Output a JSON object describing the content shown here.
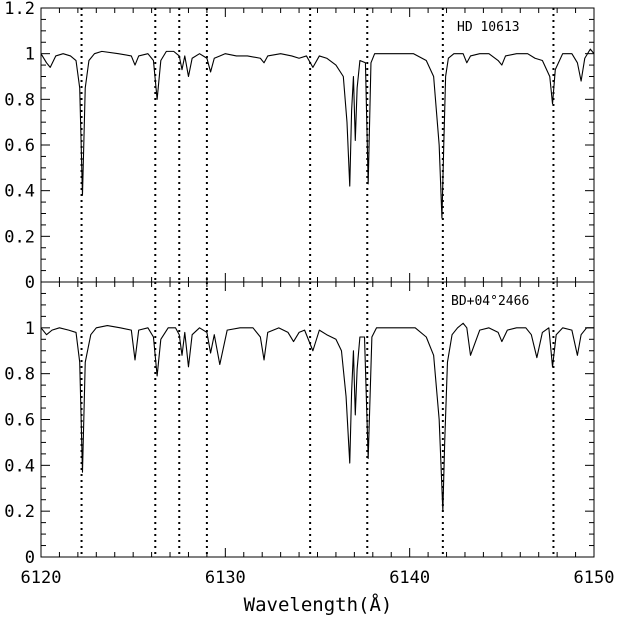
{
  "chart_data": [
    {
      "type": "line",
      "panel": "top",
      "label": "HD 10613",
      "x_range": [
        6120,
        6150
      ],
      "ylim": [
        0,
        1.2
      ],
      "y_ticks": [
        0,
        0.2,
        0.4,
        0.6,
        0.8,
        1,
        1.2
      ],
      "y_tick_labels": [
        "0",
        "0.2",
        "0.4",
        "0.6",
        "0.8",
        "1",
        "1.2"
      ],
      "series": [
        {
          "x": [
            6120.0,
            6120.3,
            6120.5,
            6120.8,
            6121.2,
            6121.6,
            6121.9,
            6122.1,
            6122.25,
            6122.4,
            6122.6,
            6122.9,
            6123.3,
            6124.2,
            6124.9,
            6125.1,
            6125.3,
            6125.8,
            6126.1,
            6126.3,
            6126.5,
            6126.8,
            6127.2,
            6127.5,
            6127.65,
            6127.8,
            6128.0,
            6128.2,
            6128.6,
            6129.0,
            6129.2,
            6129.4,
            6129.7,
            6130.0,
            6130.6,
            6131.2,
            6131.9,
            6132.1,
            6132.3,
            6133.0,
            6133.6,
            6134.0,
            6134.4,
            6134.75,
            6135.1,
            6135.5,
            6136.0,
            6136.4,
            6136.6,
            6136.75,
            6136.85,
            6136.95,
            6137.05,
            6137.15,
            6137.3,
            6137.6,
            6137.75,
            6137.9,
            6138.1,
            6138.5,
            6139.3,
            6140.2,
            6140.9,
            6141.3,
            6141.6,
            6141.75,
            6141.85,
            6141.95,
            6142.1,
            6142.4,
            6142.9,
            6143.1,
            6143.3,
            6143.8,
            6144.3,
            6144.8,
            6145.0,
            6145.2,
            6145.8,
            6146.4,
            6146.8,
            6147.2,
            6147.6,
            6147.75,
            6147.9,
            6148.3,
            6148.8,
            6149.1,
            6149.3,
            6149.5,
            6149.8,
            6150.0
          ],
          "y": [
            1.0,
            0.96,
            0.94,
            0.99,
            1.0,
            0.99,
            0.97,
            0.85,
            0.38,
            0.85,
            0.97,
            1.0,
            1.01,
            1.0,
            0.99,
            0.95,
            0.99,
            1.0,
            0.97,
            0.8,
            0.97,
            1.01,
            1.01,
            0.99,
            0.93,
            0.99,
            0.9,
            0.98,
            1.0,
            0.98,
            0.92,
            0.98,
            0.99,
            1.0,
            0.99,
            0.99,
            0.98,
            0.96,
            0.99,
            1.0,
            0.99,
            0.98,
            0.99,
            0.94,
            0.99,
            0.98,
            0.95,
            0.9,
            0.7,
            0.42,
            0.75,
            0.9,
            0.62,
            0.85,
            0.97,
            0.96,
            0.43,
            0.96,
            1.0,
            1.0,
            1.0,
            1.0,
            0.97,
            0.9,
            0.6,
            0.28,
            0.6,
            0.9,
            0.98,
            1.0,
            1.0,
            0.96,
            0.99,
            1.0,
            1.0,
            0.97,
            0.95,
            0.99,
            1.0,
            1.0,
            0.98,
            0.97,
            0.9,
            0.78,
            0.93,
            1.0,
            1.0,
            0.96,
            0.88,
            0.98,
            1.02,
            1.0
          ]
        }
      ]
    },
    {
      "type": "line",
      "panel": "bottom",
      "label": "BD+04°2466",
      "x_range": [
        6120,
        6150
      ],
      "ylim": [
        0,
        1.2
      ],
      "y_ticks": [
        0,
        0.2,
        0.4,
        0.6,
        0.8,
        1
      ],
      "y_tick_labels": [
        "0",
        "0.2",
        "0.4",
        "0.6",
        "0.8",
        "1"
      ],
      "series": [
        {
          "x": [
            6120.0,
            6120.3,
            6120.6,
            6121.0,
            6121.5,
            6121.9,
            6122.1,
            6122.25,
            6122.4,
            6122.7,
            6123.0,
            6123.6,
            6124.3,
            6124.9,
            6125.1,
            6125.3,
            6125.8,
            6126.1,
            6126.3,
            6126.5,
            6126.9,
            6127.3,
            6127.5,
            6127.65,
            6127.8,
            6128.0,
            6128.2,
            6128.6,
            6129.0,
            6129.2,
            6129.4,
            6129.7,
            6130.1,
            6130.8,
            6131.5,
            6131.9,
            6132.1,
            6132.3,
            6132.9,
            6133.4,
            6133.7,
            6134.0,
            6134.3,
            6134.75,
            6135.1,
            6135.5,
            6136.0,
            6136.3,
            6136.55,
            6136.75,
            6136.85,
            6136.95,
            6137.05,
            6137.15,
            6137.3,
            6137.55,
            6137.75,
            6137.95,
            6138.2,
            6138.8,
            6139.5,
            6140.3,
            6140.9,
            6141.3,
            6141.6,
            6141.8,
            6141.9,
            6142.05,
            6142.3,
            6142.6,
            6142.9,
            6143.1,
            6143.3,
            6143.8,
            6144.3,
            6144.8,
            6145.0,
            6145.3,
            6145.8,
            6146.3,
            6146.6,
            6146.9,
            6147.2,
            6147.55,
            6147.75,
            6147.95,
            6148.3,
            6148.8,
            6149.1,
            6149.3,
            6149.6,
            6150.0
          ],
          "y": [
            1.0,
            0.97,
            0.99,
            1.0,
            0.99,
            0.98,
            0.85,
            0.37,
            0.85,
            0.97,
            1.0,
            1.01,
            1.0,
            0.99,
            0.86,
            0.99,
            1.0,
            0.96,
            0.79,
            0.95,
            1.0,
            1.0,
            0.97,
            0.88,
            0.98,
            0.83,
            0.97,
            1.0,
            0.98,
            0.89,
            0.97,
            0.84,
            0.99,
            1.0,
            1.0,
            0.96,
            0.86,
            0.98,
            1.0,
            0.98,
            0.94,
            0.98,
            0.99,
            0.9,
            0.99,
            0.97,
            0.95,
            0.9,
            0.7,
            0.41,
            0.72,
            0.9,
            0.62,
            0.82,
            0.96,
            0.96,
            0.43,
            0.96,
            1.0,
            1.0,
            1.0,
            1.0,
            0.96,
            0.88,
            0.6,
            0.2,
            0.5,
            0.85,
            0.97,
            1.0,
            1.02,
            1.0,
            0.88,
            0.99,
            1.0,
            0.98,
            0.94,
            0.99,
            1.0,
            1.0,
            0.97,
            0.87,
            0.98,
            1.0,
            0.83,
            0.97,
            1.0,
            0.99,
            0.88,
            0.97,
            1.0,
            1.0
          ]
        }
      ]
    }
  ],
  "shared": {
    "x_ticks": [
      6120,
      6130,
      6140,
      6150
    ],
    "x_tick_labels": [
      "6120",
      "6130",
      "6140",
      "6150"
    ],
    "xlabel": "Wavelength(Å)",
    "reference_lines_x": [
      6122.2,
      6126.2,
      6127.5,
      6129.0,
      6134.6,
      6137.7,
      6141.8,
      6147.8
    ],
    "line_color": "#000000"
  }
}
